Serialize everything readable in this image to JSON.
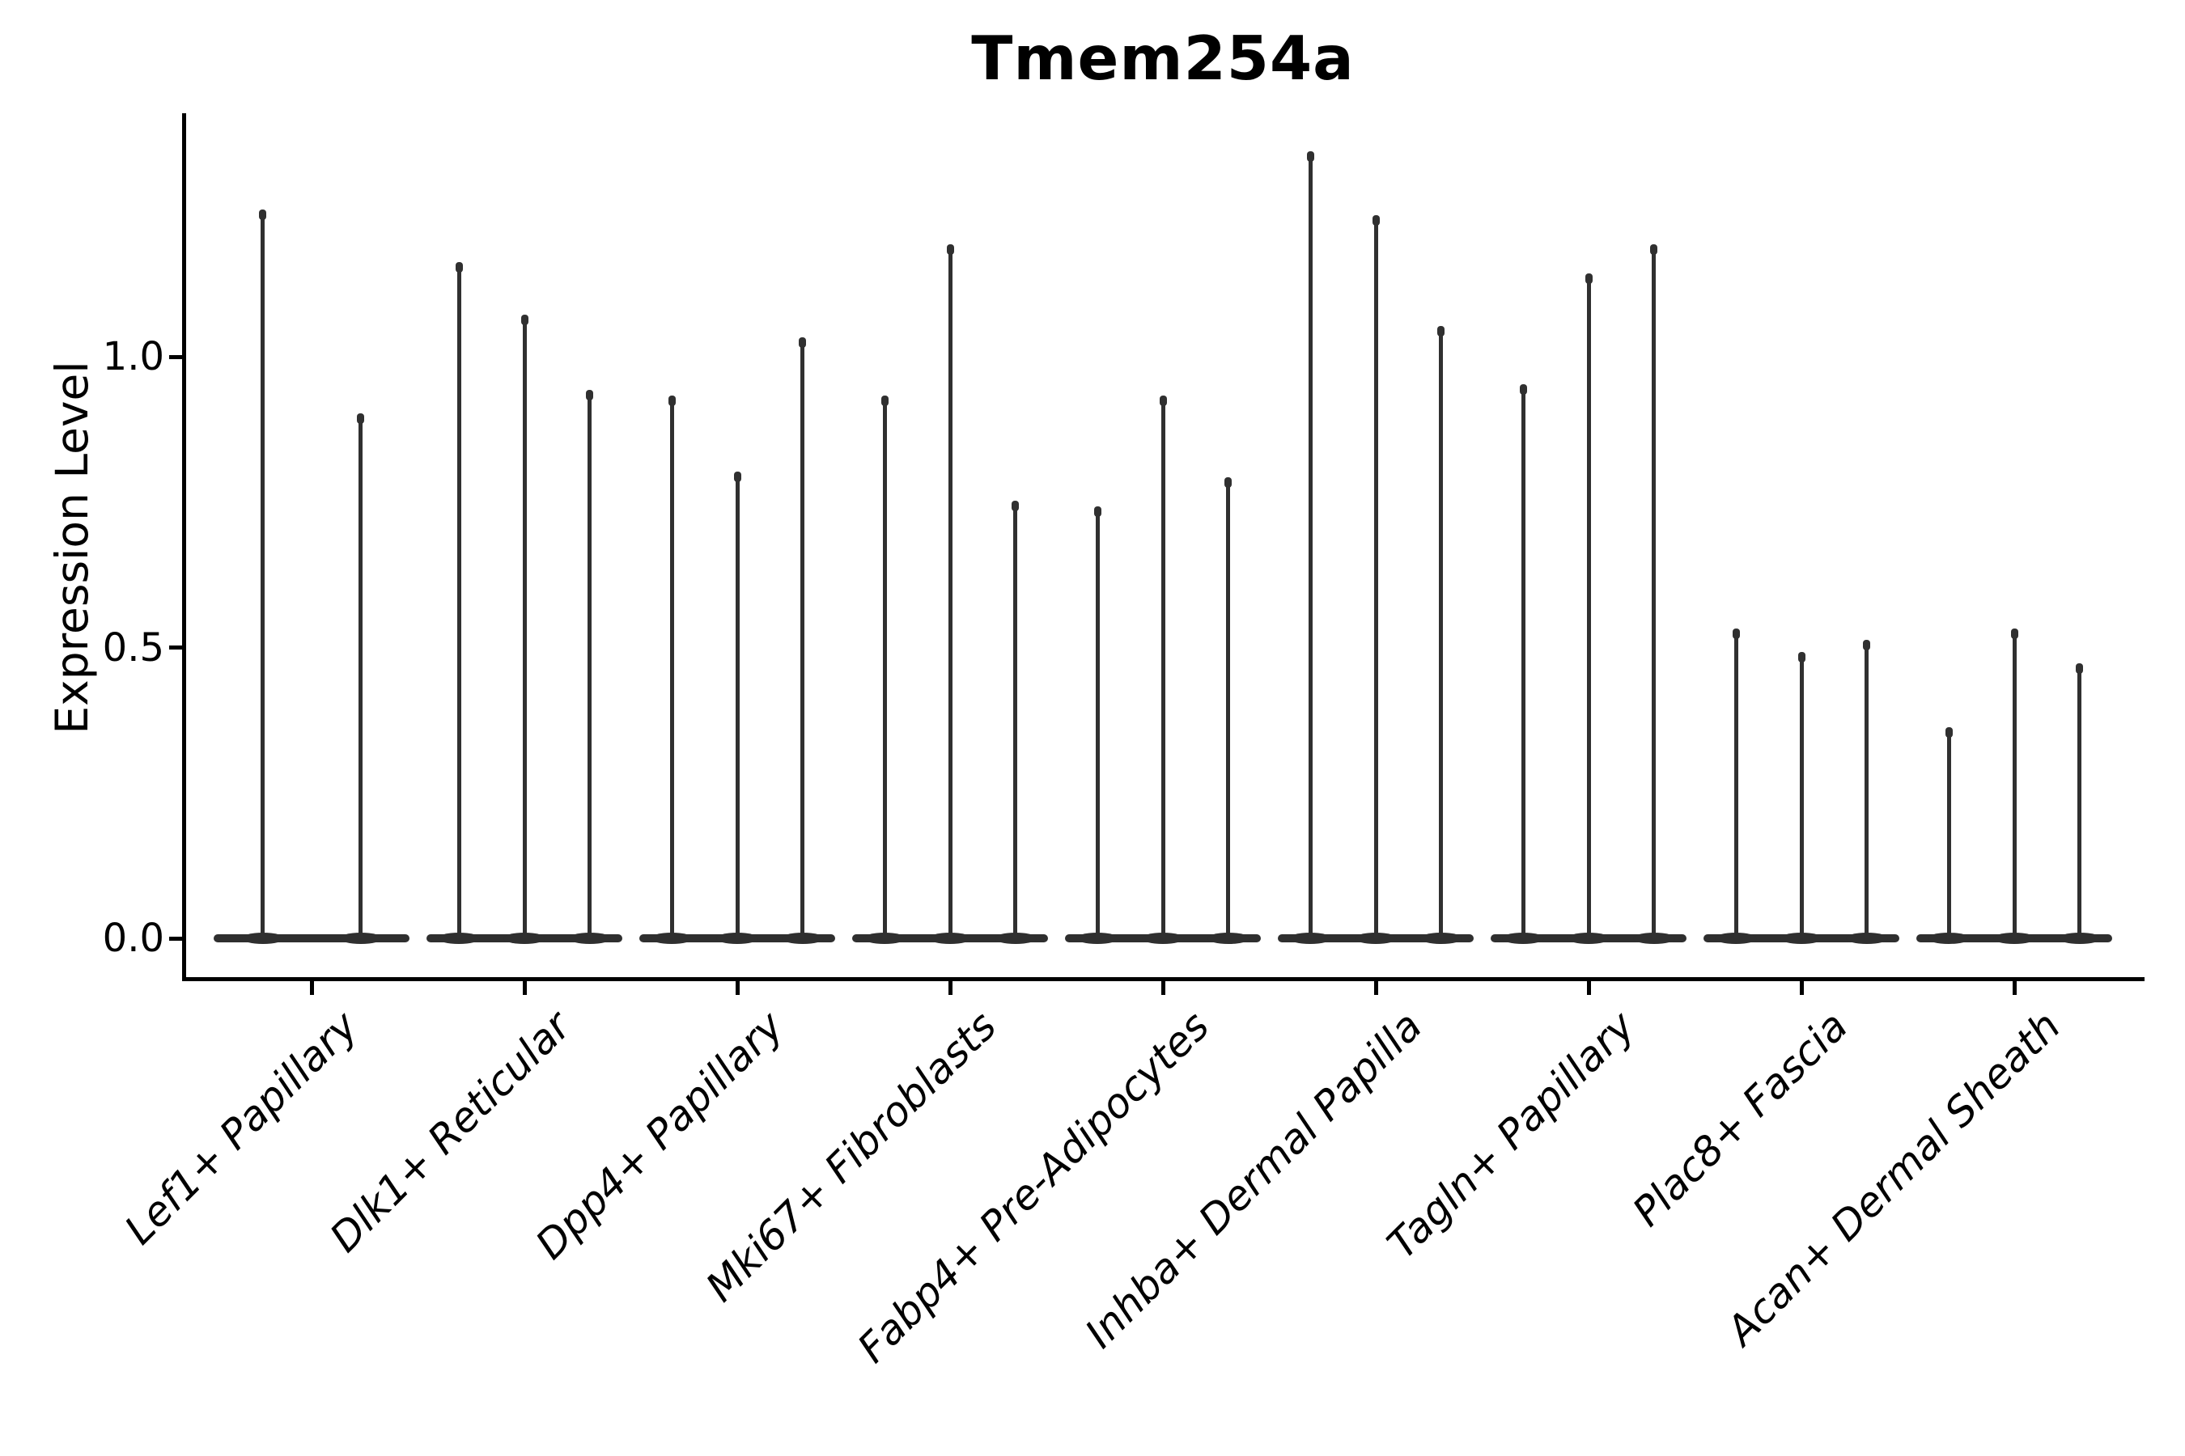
{
  "title": "Tmem254a",
  "chart_data": {
    "type": "violin",
    "title": "Tmem254a",
    "xlabel": "",
    "ylabel": "Expression Level",
    "yticks": [
      0.0,
      0.5,
      1.0
    ],
    "ylim": [
      -0.07,
      1.42
    ],
    "grid": false,
    "legend": "none",
    "violin_color": "#2f2f2f",
    "axis_color": "#000000",
    "description": "Sparse single-cell expression violins: each violin is a flat density mass at 0 with a thin spike rising to its maximum expression value.",
    "categories": [
      "Lef1+ Papillary",
      "Dlk1+ Reticular",
      "Dpp4+ Papillary",
      "Mki67+ Fibroblasts",
      "Fabp4+ Pre-Adipocytes",
      "Inhba+ Dermal Papilla",
      "Tagln+ Papillary",
      "Plac8+ Fascia",
      "Acan+ Dermal Sheath"
    ],
    "violin_max_values": [
      [
        1.25,
        0.9
      ],
      [
        1.16,
        1.07,
        0.94
      ],
      [
        0.93,
        0.8,
        1.03
      ],
      [
        0.93,
        1.19,
        0.75
      ],
      [
        0.74,
        0.93,
        0.79
      ],
      [
        1.35,
        1.24,
        1.05
      ],
      [
        0.95,
        1.14,
        1.19
      ],
      [
        0.53,
        0.49,
        0.51
      ],
      [
        0.36,
        0.53,
        0.47
      ]
    ]
  }
}
